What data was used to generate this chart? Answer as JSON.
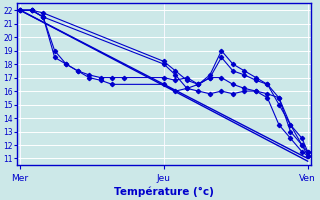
{
  "background_color": "#cce8e8",
  "plot_bg": "#cce8e8",
  "grid_color": "#ffffff",
  "line_color": "#0000cc",
  "xlabel": "Température (°c)",
  "xtick_labels": [
    "Mer",
    "Jeu",
    "Ven"
  ],
  "xtick_positions": [
    0.0,
    0.5,
    1.0
  ],
  "ylim": [
    10.5,
    22.5
  ],
  "ytick_min": 11,
  "ytick_max": 22,
  "straight_lines": [
    {
      "x": [
        0.0,
        1.0
      ],
      "y": [
        22.0,
        11.0
      ]
    },
    {
      "x": [
        0.0,
        1.0
      ],
      "y": [
        22.0,
        10.8
      ]
    }
  ],
  "forecast_lines": [
    {
      "x": [
        0.0,
        0.04,
        0.08,
        0.12,
        0.16,
        0.2,
        0.24,
        0.28,
        0.32,
        0.36,
        0.5,
        0.54,
        0.58,
        0.62,
        0.66,
        0.7,
        0.74,
        0.78,
        0.82,
        0.86,
        0.9,
        0.94,
        0.98,
        1.0
      ],
      "y": [
        22.0,
        22.0,
        21.5,
        19.0,
        18.0,
        17.5,
        17.2,
        17.0,
        17.0,
        17.0,
        17.0,
        16.8,
        17.0,
        16.5,
        17.0,
        17.0,
        16.5,
        16.2,
        16.0,
        15.5,
        13.5,
        12.5,
        11.5,
        11.2
      ]
    },
    {
      "x": [
        0.0,
        0.04,
        0.08,
        0.12,
        0.16,
        0.2,
        0.24,
        0.28,
        0.32,
        0.5,
        0.54,
        0.58,
        0.62,
        0.66,
        0.7,
        0.74,
        0.78,
        0.82,
        0.86,
        0.9,
        0.94,
        0.98,
        1.0
      ],
      "y": [
        22.0,
        22.0,
        21.5,
        18.5,
        18.0,
        17.5,
        17.0,
        16.8,
        16.5,
        16.5,
        16.0,
        16.2,
        16.0,
        15.8,
        16.0,
        15.8,
        16.0,
        16.0,
        15.8,
        15.5,
        13.0,
        12.0,
        11.5
      ]
    },
    {
      "x": [
        0.0,
        0.04,
        0.08,
        0.5,
        0.54,
        0.58,
        0.62,
        0.66,
        0.7,
        0.74,
        0.78,
        0.82,
        0.86,
        0.9,
        0.94,
        0.98,
        1.0
      ],
      "y": [
        22.0,
        22.0,
        21.8,
        18.2,
        17.5,
        16.8,
        16.5,
        17.0,
        18.5,
        17.5,
        17.2,
        16.8,
        16.5,
        15.5,
        13.5,
        12.5,
        11.5
      ]
    },
    {
      "x": [
        0.0,
        0.04,
        0.08,
        0.5,
        0.54,
        0.58,
        0.62,
        0.66,
        0.7,
        0.74,
        0.78,
        0.82,
        0.86,
        0.9,
        0.94,
        0.98,
        1.0
      ],
      "y": [
        22.0,
        22.0,
        21.5,
        18.0,
        17.2,
        16.2,
        16.5,
        17.2,
        19.0,
        18.0,
        17.5,
        17.0,
        16.5,
        15.0,
        13.5,
        12.0,
        11.2
      ]
    }
  ]
}
